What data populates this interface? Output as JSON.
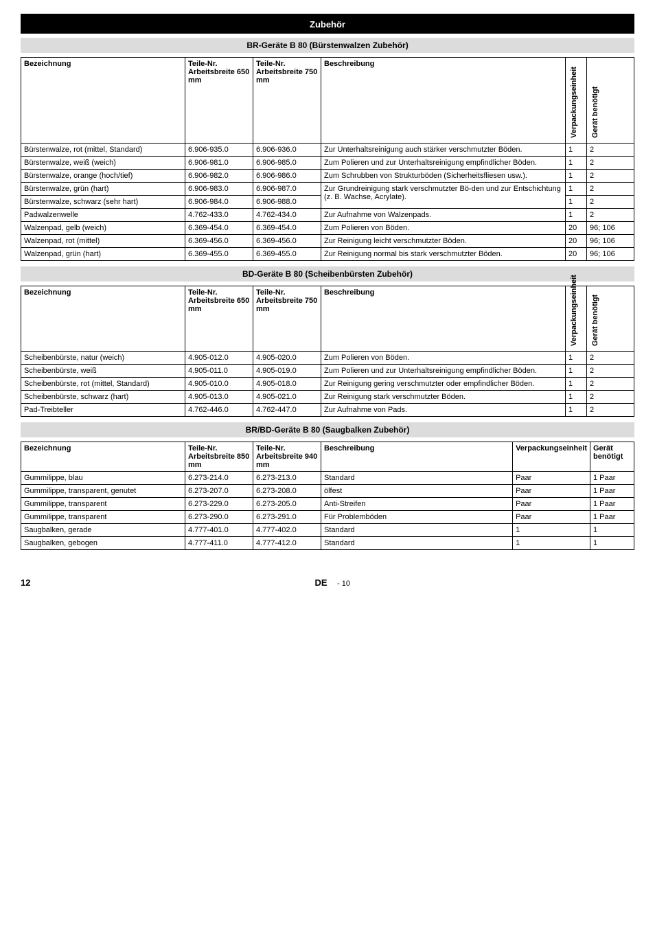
{
  "header": {
    "title": "Zubehör"
  },
  "tables": {
    "br": {
      "title": "BR-Geräte B 80 (Bürstenwalzen Zubehör)",
      "headers": {
        "bez": "Bezeichnung",
        "t1": "Teile-Nr. Arbeitsbreite 650 mm",
        "t2": "Teile-Nr. Arbeitsbreite 750 mm",
        "besch": "Beschreibung",
        "vpe": "Verpackungseinheit",
        "ger": "Gerät benötigt"
      },
      "rows": [
        {
          "bez": "Bürstenwalze, rot (mittel, Standard)",
          "t1": "6.906-935.0",
          "t2": "6.906-936.0",
          "besch": "Zur Unterhaltsreinigung auch stärker verschmutzter Böden.",
          "vpe": "1",
          "ger": "2"
        },
        {
          "bez": "Bürstenwalze, weiß (weich)",
          "t1": "6.906-981.0",
          "t2": "6.906-985.0",
          "besch": "Zum Polieren und zur Unterhaltsreinigung empfindlicher Böden.",
          "vpe": "1",
          "ger": "2"
        },
        {
          "bez": "Bürstenwalze, orange (hoch/tief)",
          "t1": "6.906-982.0",
          "t2": "6.906-986.0",
          "besch": "Zum Schrubben von Strukturböden (Sicherheitsfliesen usw.).",
          "vpe": "1",
          "ger": "2"
        },
        {
          "bez": "Bürstenwalze, grün (hart)",
          "t1": "6.906-983.0",
          "t2": "6.906-987.0",
          "besch": "Zur Grundreinigung stark verschmutzter Bö-",
          "vpe": "1",
          "ger": "2",
          "mergeNext": true
        },
        {
          "bez": "Bürstenwalze, schwarz (sehr hart)",
          "t1": "6.906-984.0",
          "t2": "6.906-988.0",
          "besch": "den und zur Entschichtung (z. B. Wachse, Acrylate).",
          "vpe": "1",
          "ger": "2",
          "mergedBesch": true
        },
        {
          "bez": "Padwalzenwelle",
          "t1": "4.762-433.0",
          "t2": "4.762-434.0",
          "besch": "Zur Aufnahme von Walzenpads.",
          "vpe": "1",
          "ger": "2"
        },
        {
          "bez": "Walzenpad, gelb (weich)",
          "t1": "6.369-454.0",
          "t2": "6.369-454.0",
          "besch": "Zum Polieren von Böden.",
          "vpe": "20",
          "ger": "96; 106"
        },
        {
          "bez": "Walzenpad, rot (mittel)",
          "t1": "6.369-456.0",
          "t2": "6.369-456.0",
          "besch": "Zur Reinigung leicht verschmutzter Böden.",
          "vpe": "20",
          "ger": "96; 106"
        },
        {
          "bez": "Walzenpad, grün (hart)",
          "t1": "6.369-455.0",
          "t2": "6.369-455.0",
          "besch": "Zur Reinigung normal bis stark verschmutzter Böden.",
          "vpe": "20",
          "ger": "96; 106"
        }
      ]
    },
    "bd": {
      "title": "BD-Geräte B 80 (Scheibenbürsten Zubehör)",
      "headers": {
        "bez": "Bezeichnung",
        "t1": "Teile-Nr. Arbeitsbreite 650 mm",
        "t2": "Teile-Nr. Arbeitsbreite 750 mm",
        "besch": "Beschreibung",
        "vpe": "Verpackungseinheit",
        "ger": "Gerät benötigt"
      },
      "rows": [
        {
          "bez": "Scheibenbürste, natur (weich)",
          "t1": "4.905-012.0",
          "t2": "4.905-020.0",
          "besch": "Zum Polieren von Böden.",
          "vpe": "1",
          "ger": "2"
        },
        {
          "bez": "Scheibenbürste, weiß",
          "t1": "4.905-011.0",
          "t2": "4.905-019.0",
          "besch": "Zum Polieren und zur Unterhaltsreinigung empfindlicher Böden.",
          "vpe": "1",
          "ger": "2"
        },
        {
          "bez": "Scheibenbürste, rot (mittel, Standard)",
          "t1": "4.905-010.0",
          "t2": "4.905-018.0",
          "besch": "Zur Reinigung gering verschmutzter oder empfindlicher Böden.",
          "vpe": "1",
          "ger": "2"
        },
        {
          "bez": "Scheibenbürste, schwarz (hart)",
          "t1": "4.905-013.0",
          "t2": "4.905-021.0",
          "besch": "Zur Reinigung stark verschmutzter Böden.",
          "vpe": "1",
          "ger": "2"
        },
        {
          "bez": "Pad-Treibteller",
          "t1": "4.762-446.0",
          "t2": "4.762-447.0",
          "besch": "Zur Aufnahme von Pads.",
          "vpe": "1",
          "ger": "2"
        }
      ]
    },
    "saug": {
      "title": "BR/BD-Geräte B 80 (Saugbalken Zubehör)",
      "headers": {
        "bez": "Bezeichnung",
        "t1": "Teile-Nr. Arbeitsbreite 850 mm",
        "t2": "Teile-Nr. Arbeitsbreite 940 mm",
        "besch": "Beschreibung",
        "vpe": "Verpackungseinheit",
        "ger": "Gerät benötigt"
      },
      "rows": [
        {
          "bez": "Gummilippe, blau",
          "t1": "6.273-214.0",
          "t2": "6.273-213.0",
          "besch": "Standard",
          "vpe": "Paar",
          "ger": "1 Paar"
        },
        {
          "bez": "Gummilippe, transparent, genutet",
          "t1": "6.273-207.0",
          "t2": "6.273-208.0",
          "besch": "ölfest",
          "vpe": "Paar",
          "ger": "1 Paar"
        },
        {
          "bez": "Gummilippe, transparent",
          "t1": "6.273-229.0",
          "t2": "6.273-205.0",
          "besch": "Anti-Streifen",
          "vpe": "Paar",
          "ger": "1 Paar"
        },
        {
          "bez": "Gummilippe, transparent",
          "t1": "6.273-290.0",
          "t2": "6.273-291.0",
          "besch": "Für Problemböden",
          "vpe": "Paar",
          "ger": "1 Paar"
        },
        {
          "bez": "Saugbalken, gerade",
          "t1": "4.777-401.0",
          "t2": "4.777-402.0",
          "besch": "Standard",
          "vpe": "1",
          "ger": "1"
        },
        {
          "bez": "Saugbalken, gebogen",
          "t1": "4.777-411.0",
          "t2": "4.777-412.0",
          "besch": "Standard",
          "vpe": "1",
          "ger": "1"
        }
      ]
    }
  },
  "footer": {
    "pageLeft": "12",
    "lang": "DE",
    "sub": "- 10"
  }
}
